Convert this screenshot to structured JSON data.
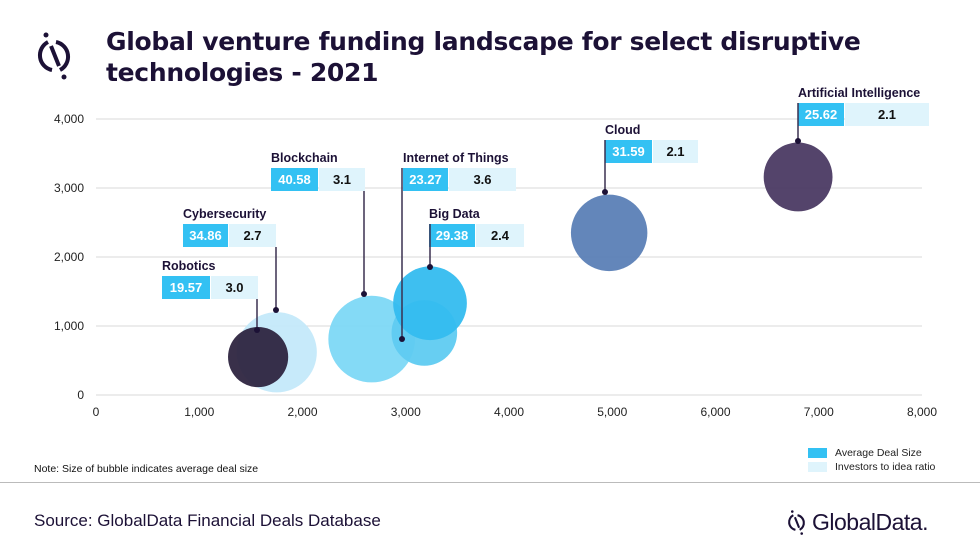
{
  "title_line1": "Global venture funding landscape for select disruptive",
  "title_line2": "technologies - 2021",
  "note": "Note: Size of bubble indicates average deal size",
  "source": "Source: GlobalData Financial Deals Database",
  "brand": "GlobalData.",
  "legend": [
    {
      "label": "Average Deal Size",
      "color": "#33c1f3"
    },
    {
      "label": "Investors to idea ratio",
      "color": "#dff4fc"
    }
  ],
  "chart_data": {
    "type": "bubble",
    "title": "Global venture funding landscape for select disruptive technologies - 2021",
    "xlim": [
      0,
      8000
    ],
    "ylim": [
      0,
      4000
    ],
    "xticks": [
      "0",
      "1,000",
      "2,000",
      "3,000",
      "4,000",
      "5,000",
      "6,000",
      "7,000",
      "8,000"
    ],
    "yticks": [
      "0",
      "1,000",
      "2,000",
      "3,000",
      "4,000"
    ],
    "grid": "horizontal",
    "legend_position": "bottom-right",
    "points": [
      {
        "name": "Cybersecurity",
        "x": 1750,
        "y": 620,
        "deal_size": "34.86",
        "ratio": "2.7",
        "color": "#c4e9fa"
      },
      {
        "name": "Robotics",
        "x": 1570,
        "y": 550,
        "deal_size": "19.57",
        "ratio": "3.0",
        "color": "#2e2540"
      },
      {
        "name": "Blockchain",
        "x": 2670,
        "y": 810,
        "deal_size": "40.58",
        "ratio": "3.1",
        "color": "#7dd8f6"
      },
      {
        "name": "Internet of Things",
        "x": 3180,
        "y": 900,
        "deal_size": "23.27",
        "ratio": "3.6",
        "color": "#5fcbf1"
      },
      {
        "name": "Big Data",
        "x": 3235,
        "y": 1330,
        "deal_size": "29.38",
        "ratio": "2.4",
        "color": "#34bcef"
      },
      {
        "name": "Cloud",
        "x": 4970,
        "y": 2350,
        "deal_size": "31.59",
        "ratio": "2.1",
        "color": "#5b80b6"
      },
      {
        "name": "Artificial Intelligence",
        "x": 6800,
        "y": 3160,
        "deal_size": "25.62",
        "ratio": "2.1",
        "color": "#4b3a63"
      }
    ]
  }
}
